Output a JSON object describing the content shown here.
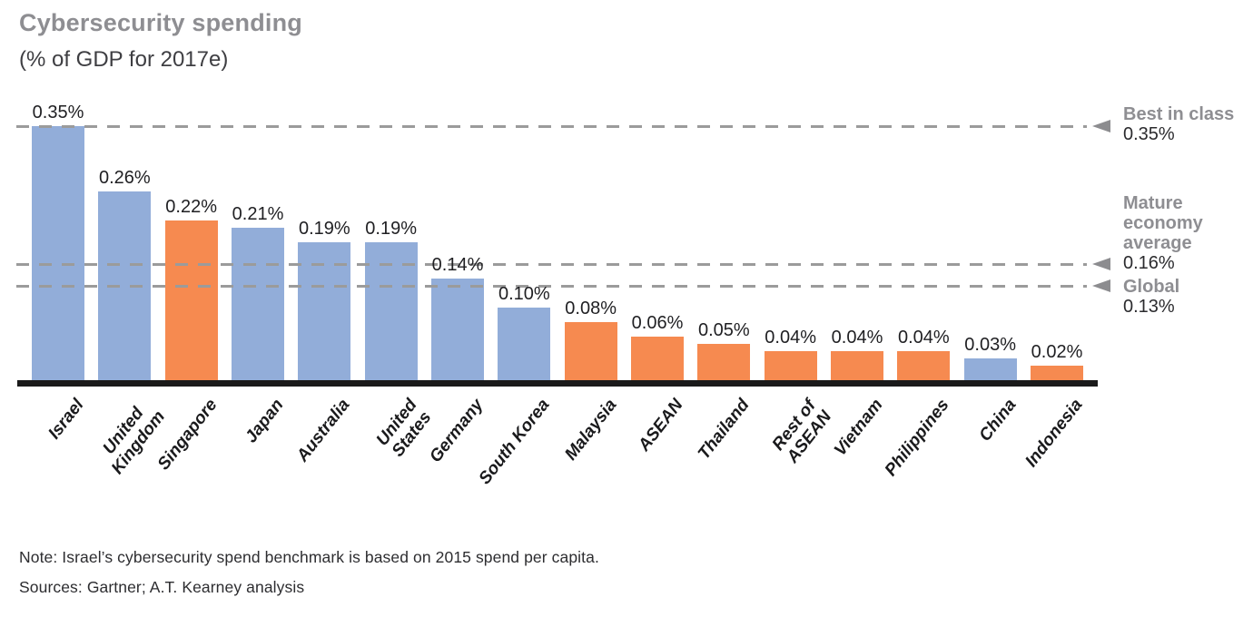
{
  "title": "Cybersecurity spending",
  "subtitle": "(% of GDP for 2017e)",
  "colors": {
    "blue": "#92add9",
    "orange": "#f68a50",
    "axis": "#1a1a1a",
    "dash_gray": "#9b9b9b",
    "arrow_gray": "#8c8c8f",
    "label_gray": "#8e8e92",
    "text_dark": "#2b2b2e"
  },
  "chart_data": {
    "type": "bar",
    "title": "Cybersecurity spending",
    "subtitle": "(% of GDP for 2017e)",
    "xlabel": "",
    "ylabel": "% of GDP",
    "ylim": [
      0,
      0.37
    ],
    "grid": false,
    "categories": [
      "Israel",
      "United\nKingdom",
      "Singapore",
      "Japan",
      "Australia",
      "United\nStates",
      "Germany",
      "South Korea",
      "Malaysia",
      "ASEAN",
      "Thailand",
      "Rest of\nASEAN",
      "Vietnam",
      "Philippines",
      "China",
      "Indonesia"
    ],
    "values": [
      0.35,
      0.26,
      0.22,
      0.21,
      0.19,
      0.19,
      0.14,
      0.1,
      0.08,
      0.06,
      0.05,
      0.04,
      0.04,
      0.04,
      0.03,
      0.02
    ],
    "value_labels": [
      "0.35%",
      "0.26%",
      "0.22%",
      "0.21%",
      "0.19%",
      "0.19%",
      "0.14%",
      "0.10%",
      "0.08%",
      "0.06%",
      "0.05%",
      "0.04%",
      "0.04%",
      "0.04%",
      "0.03%",
      "0.02%"
    ],
    "bar_colors": [
      "blue",
      "blue",
      "orange",
      "blue",
      "blue",
      "blue",
      "blue",
      "blue",
      "orange",
      "orange",
      "orange",
      "orange",
      "orange",
      "orange",
      "blue",
      "orange"
    ],
    "reference_lines": [
      {
        "label": "Best in class",
        "value": 0.35,
        "value_label": "0.35%"
      },
      {
        "label": "Mature economy average",
        "value": 0.16,
        "value_label": "0.16%"
      },
      {
        "label": "Global",
        "value": 0.13,
        "value_label": "0.13%"
      }
    ],
    "legend_position": "right"
  },
  "footnotes": {
    "note": "Note: Israel’s cybersecurity spend benchmark is based on 2015 spend per capita.",
    "sources": "Sources: Gartner; A.T. Kearney analysis"
  }
}
